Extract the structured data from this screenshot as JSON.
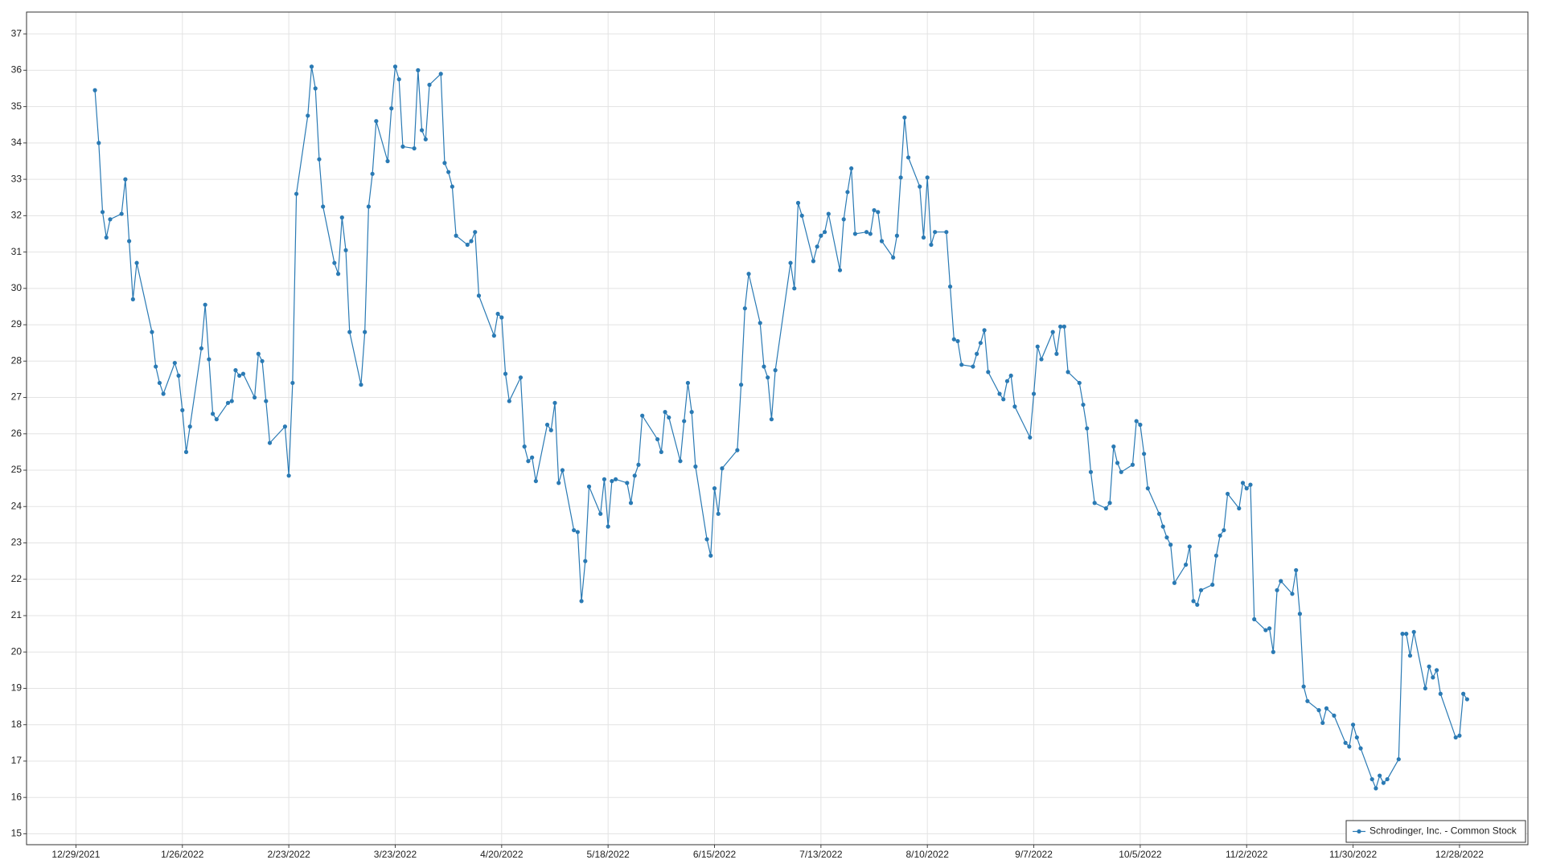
{
  "chart_data": {
    "type": "line",
    "x": [
      "1/3/2022",
      "1/4/2022",
      "1/5/2022",
      "1/6/2022",
      "1/7/2022",
      "1/10/2022",
      "1/11/2022",
      "1/12/2022",
      "1/13/2022",
      "1/14/2022",
      "1/18/2022",
      "1/19/2022",
      "1/20/2022",
      "1/21/2022",
      "1/24/2022",
      "1/25/2022",
      "1/26/2022",
      "1/27/2022",
      "1/28/2022",
      "1/31/2022",
      "2/1/2022",
      "2/2/2022",
      "2/3/2022",
      "2/4/2022",
      "2/7/2022",
      "2/8/2022",
      "2/9/2022",
      "2/10/2022",
      "2/11/2022",
      "2/14/2022",
      "2/15/2022",
      "2/16/2022",
      "2/17/2022",
      "2/18/2022",
      "2/22/2022",
      "2/23/2022",
      "2/24/2022",
      "2/25/2022",
      "2/28/2022",
      "3/1/2022",
      "3/2/2022",
      "3/3/2022",
      "3/4/2022",
      "3/7/2022",
      "3/8/2022",
      "3/9/2022",
      "3/10/2022",
      "3/11/2022",
      "3/14/2022",
      "3/15/2022",
      "3/16/2022",
      "3/17/2022",
      "3/18/2022",
      "3/21/2022",
      "3/22/2022",
      "3/23/2022",
      "3/24/2022",
      "3/25/2022",
      "3/28/2022",
      "3/29/2022",
      "3/30/2022",
      "3/31/2022",
      "4/1/2022",
      "4/4/2022",
      "4/5/2022",
      "4/6/2022",
      "4/7/2022",
      "4/8/2022",
      "4/11/2022",
      "4/12/2022",
      "4/13/2022",
      "4/14/2022",
      "4/18/2022",
      "4/19/2022",
      "4/20/2022",
      "4/21/2022",
      "4/22/2022",
      "4/25/2022",
      "4/26/2022",
      "4/27/2022",
      "4/28/2022",
      "4/29/2022",
      "5/2/2022",
      "5/3/2022",
      "5/4/2022",
      "5/5/2022",
      "5/6/2022",
      "5/9/2022",
      "5/10/2022",
      "5/11/2022",
      "5/12/2022",
      "5/13/2022",
      "5/16/2022",
      "5/17/2022",
      "5/18/2022",
      "5/19/2022",
      "5/20/2022",
      "5/23/2022",
      "5/24/2022",
      "5/25/2022",
      "5/26/2022",
      "5/27/2022",
      "5/31/2022",
      "6/1/2022",
      "6/2/2022",
      "6/3/2022",
      "6/6/2022",
      "6/7/2022",
      "6/8/2022",
      "6/9/2022",
      "6/10/2022",
      "6/13/2022",
      "6/14/2022",
      "6/15/2022",
      "6/16/2022",
      "6/17/2022",
      "6/21/2022",
      "6/22/2022",
      "6/23/2022",
      "6/24/2022",
      "6/27/2022",
      "6/28/2022",
      "6/29/2022",
      "6/30/2022",
      "7/1/2022",
      "7/5/2022",
      "7/6/2022",
      "7/7/2022",
      "7/8/2022",
      "7/11/2022",
      "7/12/2022",
      "7/13/2022",
      "7/14/2022",
      "7/15/2022",
      "7/18/2022",
      "7/19/2022",
      "7/20/2022",
      "7/21/2022",
      "7/22/2022",
      "7/25/2022",
      "7/26/2022",
      "7/27/2022",
      "7/28/2022",
      "7/29/2022",
      "8/1/2022",
      "8/2/2022",
      "8/3/2022",
      "8/4/2022",
      "8/5/2022",
      "8/8/2022",
      "8/9/2022",
      "8/10/2022",
      "8/11/2022",
      "8/12/2022",
      "8/15/2022",
      "8/16/2022",
      "8/17/2022",
      "8/18/2022",
      "8/19/2022",
      "8/22/2022",
      "8/23/2022",
      "8/24/2022",
      "8/25/2022",
      "8/26/2022",
      "8/29/2022",
      "8/30/2022",
      "8/31/2022",
      "9/1/2022",
      "9/2/2022",
      "9/6/2022",
      "9/7/2022",
      "9/8/2022",
      "9/9/2022",
      "9/12/2022",
      "9/13/2022",
      "9/14/2022",
      "9/15/2022",
      "9/16/2022",
      "9/19/2022",
      "9/20/2022",
      "9/21/2022",
      "9/22/2022",
      "9/23/2022",
      "9/26/2022",
      "9/27/2022",
      "9/28/2022",
      "9/29/2022",
      "9/30/2022",
      "10/3/2022",
      "10/4/2022",
      "10/5/2022",
      "10/6/2022",
      "10/7/2022",
      "10/10/2022",
      "10/11/2022",
      "10/12/2022",
      "10/13/2022",
      "10/14/2022",
      "10/17/2022",
      "10/18/2022",
      "10/19/2022",
      "10/20/2022",
      "10/21/2022",
      "10/24/2022",
      "10/25/2022",
      "10/26/2022",
      "10/27/2022",
      "10/28/2022",
      "10/31/2022",
      "11/1/2022",
      "11/2/2022",
      "11/3/2022",
      "11/4/2022",
      "11/7/2022",
      "11/8/2022",
      "11/9/2022",
      "11/10/2022",
      "11/11/2022",
      "11/14/2022",
      "11/15/2022",
      "11/16/2022",
      "11/17/2022",
      "11/18/2022",
      "11/21/2022",
      "11/22/2022",
      "11/23/2022",
      "11/25/2022",
      "11/28/2022",
      "11/29/2022",
      "11/30/2022",
      "12/1/2022",
      "12/2/2022",
      "12/5/2022",
      "12/6/2022",
      "12/7/2022",
      "12/8/2022",
      "12/9/2022",
      "12/12/2022",
      "12/13/2022",
      "12/14/2022",
      "12/15/2022",
      "12/16/2022",
      "12/19/2022",
      "12/20/2022",
      "12/21/2022",
      "12/22/2022",
      "12/23/2022",
      "12/27/2022",
      "12/28/2022",
      "12/29/2022",
      "12/30/2022"
    ],
    "series": [
      {
        "name": "Schrodinger, Inc. - Common Stock",
        "color": "#2a7ab4",
        "values": [
          35.45,
          34.0,
          32.1,
          31.4,
          31.9,
          32.05,
          33.0,
          31.3,
          29.7,
          30.7,
          28.8,
          27.85,
          27.4,
          27.1,
          27.95,
          27.6,
          26.65,
          25.5,
          26.2,
          28.35,
          29.55,
          28.05,
          26.55,
          26.4,
          26.85,
          26.9,
          27.75,
          27.6,
          27.65,
          27.0,
          28.2,
          28.0,
          26.9,
          25.75,
          26.2,
          24.85,
          27.4,
          32.6,
          34.75,
          36.1,
          35.5,
          33.55,
          32.25,
          30.7,
          30.4,
          31.95,
          31.05,
          28.8,
          27.35,
          28.8,
          32.25,
          33.15,
          34.6,
          33.5,
          34.95,
          36.1,
          35.75,
          33.9,
          33.85,
          36.0,
          34.35,
          34.1,
          35.6,
          35.9,
          33.45,
          33.2,
          32.8,
          31.45,
          31.2,
          31.3,
          31.55,
          29.8,
          28.7,
          29.3,
          29.2,
          27.65,
          26.9,
          27.55,
          25.65,
          25.25,
          25.35,
          24.7,
          26.25,
          26.1,
          26.85,
          24.65,
          25.0,
          23.35,
          23.3,
          21.4,
          22.5,
          24.55,
          23.8,
          24.75,
          23.45,
          24.7,
          24.75,
          24.65,
          24.1,
          24.85,
          25.15,
          26.5,
          25.85,
          25.5,
          26.6,
          26.45,
          25.25,
          26.35,
          27.4,
          26.6,
          25.1,
          23.1,
          22.65,
          24.5,
          23.8,
          25.05,
          25.55,
          27.35,
          29.45,
          30.4,
          29.05,
          27.85,
          27.55,
          26.4,
          27.75,
          30.7,
          30.0,
          32.35,
          32.0,
          30.75,
          31.15,
          31.45,
          31.55,
          32.05,
          30.5,
          31.9,
          32.65,
          33.3,
          31.5,
          31.55,
          31.5,
          32.15,
          32.1,
          31.3,
          30.85,
          31.45,
          33.05,
          34.7,
          33.6,
          32.8,
          31.4,
          33.05,
          31.2,
          31.55,
          31.55,
          30.05,
          28.6,
          28.55,
          27.9,
          27.85,
          28.2,
          28.5,
          28.85,
          27.7,
          27.1,
          26.95,
          27.45,
          27.6,
          26.75,
          25.9,
          27.1,
          28.4,
          28.05,
          28.8,
          28.2,
          28.95,
          28.95,
          27.7,
          27.4,
          26.8,
          26.15,
          24.95,
          24.1,
          23.95,
          24.1,
          25.65,
          25.2,
          24.95,
          25.15,
          26.35,
          26.25,
          25.45,
          24.5,
          23.8,
          23.45,
          23.15,
          22.95,
          21.9,
          22.4,
          22.9,
          21.4,
          21.3,
          21.7,
          21.85,
          22.65,
          23.2,
          23.35,
          24.35,
          23.95,
          24.65,
          24.5,
          24.6,
          20.9,
          20.6,
          20.65,
          20.0,
          21.7,
          21.95,
          21.6,
          22.25,
          21.05,
          19.05,
          18.65,
          18.4,
          18.05,
          18.45,
          18.25,
          17.5,
          17.4,
          18.0,
          17.65,
          17.35,
          16.5,
          16.25,
          16.6,
          16.4,
          16.5,
          17.05,
          20.5,
          20.5,
          19.9,
          20.55,
          19.0,
          19.6,
          19.3,
          19.5,
          18.85,
          17.65,
          17.7,
          18.85,
          18.7
        ]
      }
    ],
    "xlim": [
      "12/16/2021",
      "1/15/2023"
    ],
    "xticks": [
      "12/29/2021",
      "1/26/2022",
      "2/23/2022",
      "3/23/2022",
      "4/20/2022",
      "5/18/2022",
      "6/15/2022",
      "7/13/2022",
      "8/10/2022",
      "9/7/2022",
      "10/5/2022",
      "11/2/2022",
      "11/30/2022",
      "12/28/2022"
    ],
    "ylim": [
      14.7,
      37.6
    ],
    "yticks": [
      15,
      16,
      17,
      18,
      19,
      20,
      21,
      22,
      23,
      24,
      25,
      26,
      27,
      28,
      29,
      30,
      31,
      32,
      33,
      34,
      35,
      36,
      37
    ],
    "grid": true,
    "legend": "bottom-right"
  }
}
